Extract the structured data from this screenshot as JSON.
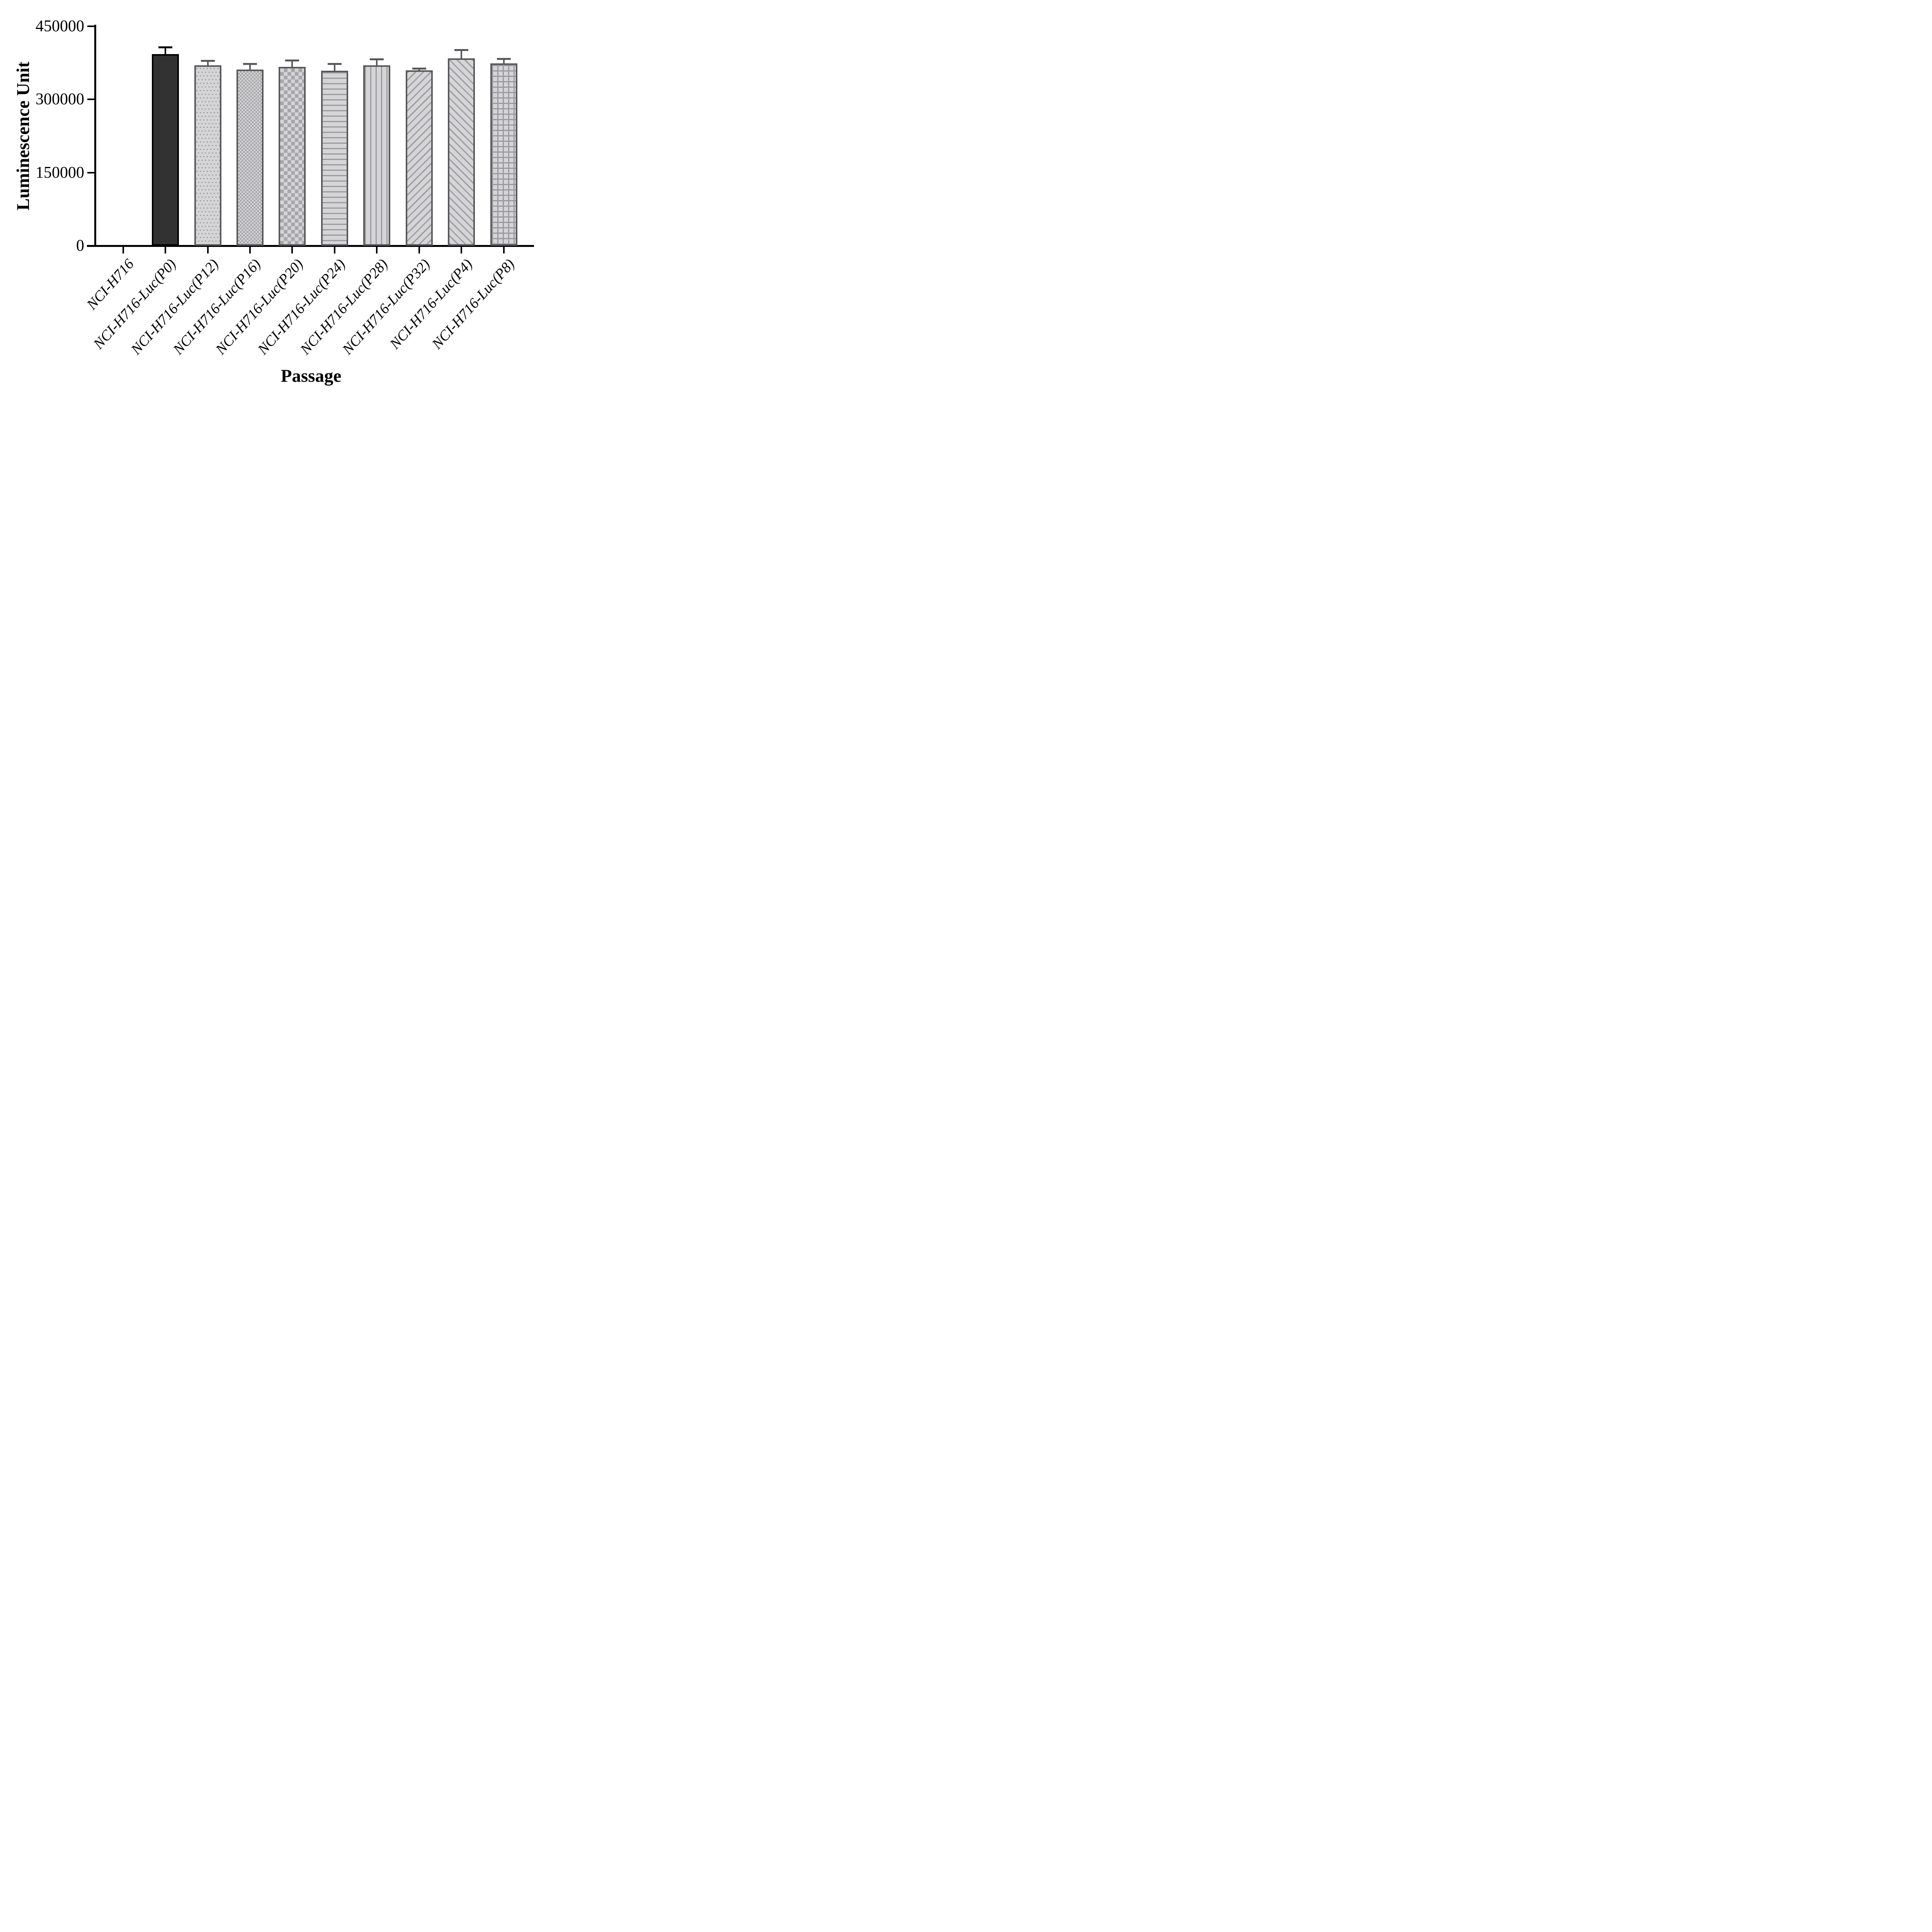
{
  "figure": {
    "background": "#ffffff",
    "axis_color": "#000000"
  },
  "chart_data": {
    "type": "bar",
    "title": "",
    "xlabel": "Passage",
    "ylabel": "Luminescence Unit",
    "categories": [
      "NCI-H716",
      "NCI-H716-Luc(P0)",
      "NCI-H716-Luc(P12)",
      "NCI-H716-Luc(P16)",
      "NCI-H716-Luc(P20)",
      "NCI-H716-Luc(P24)",
      "NCI-H716-Luc(P28)",
      "NCI-H716-Luc(P32)",
      "NCI-H716-Luc(P4)",
      "NCI-H716-Luc(P8)"
    ],
    "values": [
      0,
      393000,
      370000,
      361000,
      367000,
      359000,
      370000,
      360000,
      384000,
      374000
    ],
    "errors": [
      0,
      16000,
      11000,
      14000,
      15000,
      16000,
      14000,
      5000,
      19000,
      11000
    ],
    "error_style": "upper whisker with cap",
    "patterns": [
      "none",
      "solid",
      "dots",
      "checker-fine",
      "checker-coarse",
      "hlines",
      "vlines",
      "diagonal-up",
      "diagonal-down",
      "grid"
    ],
    "bar_edge_colors": [
      "#000000",
      "#000000",
      "#58585a",
      "#58585a",
      "#58585a",
      "#58585a",
      "#58585a",
      "#58585a",
      "#58585a",
      "#58585a"
    ],
    "solid_fill": "#323232",
    "bar_fill": "#d5d5d7",
    "bar_pattern_color": "#9a9a9e",
    "yticks": [
      0,
      150000,
      300000,
      450000
    ],
    "ytick_labels": [
      "0",
      "150000",
      "300000",
      "450000"
    ],
    "ylim": [
      0,
      450000
    ],
    "xtick_label_style": "italic, rotated 48deg",
    "legend": "none",
    "grid": false
  }
}
